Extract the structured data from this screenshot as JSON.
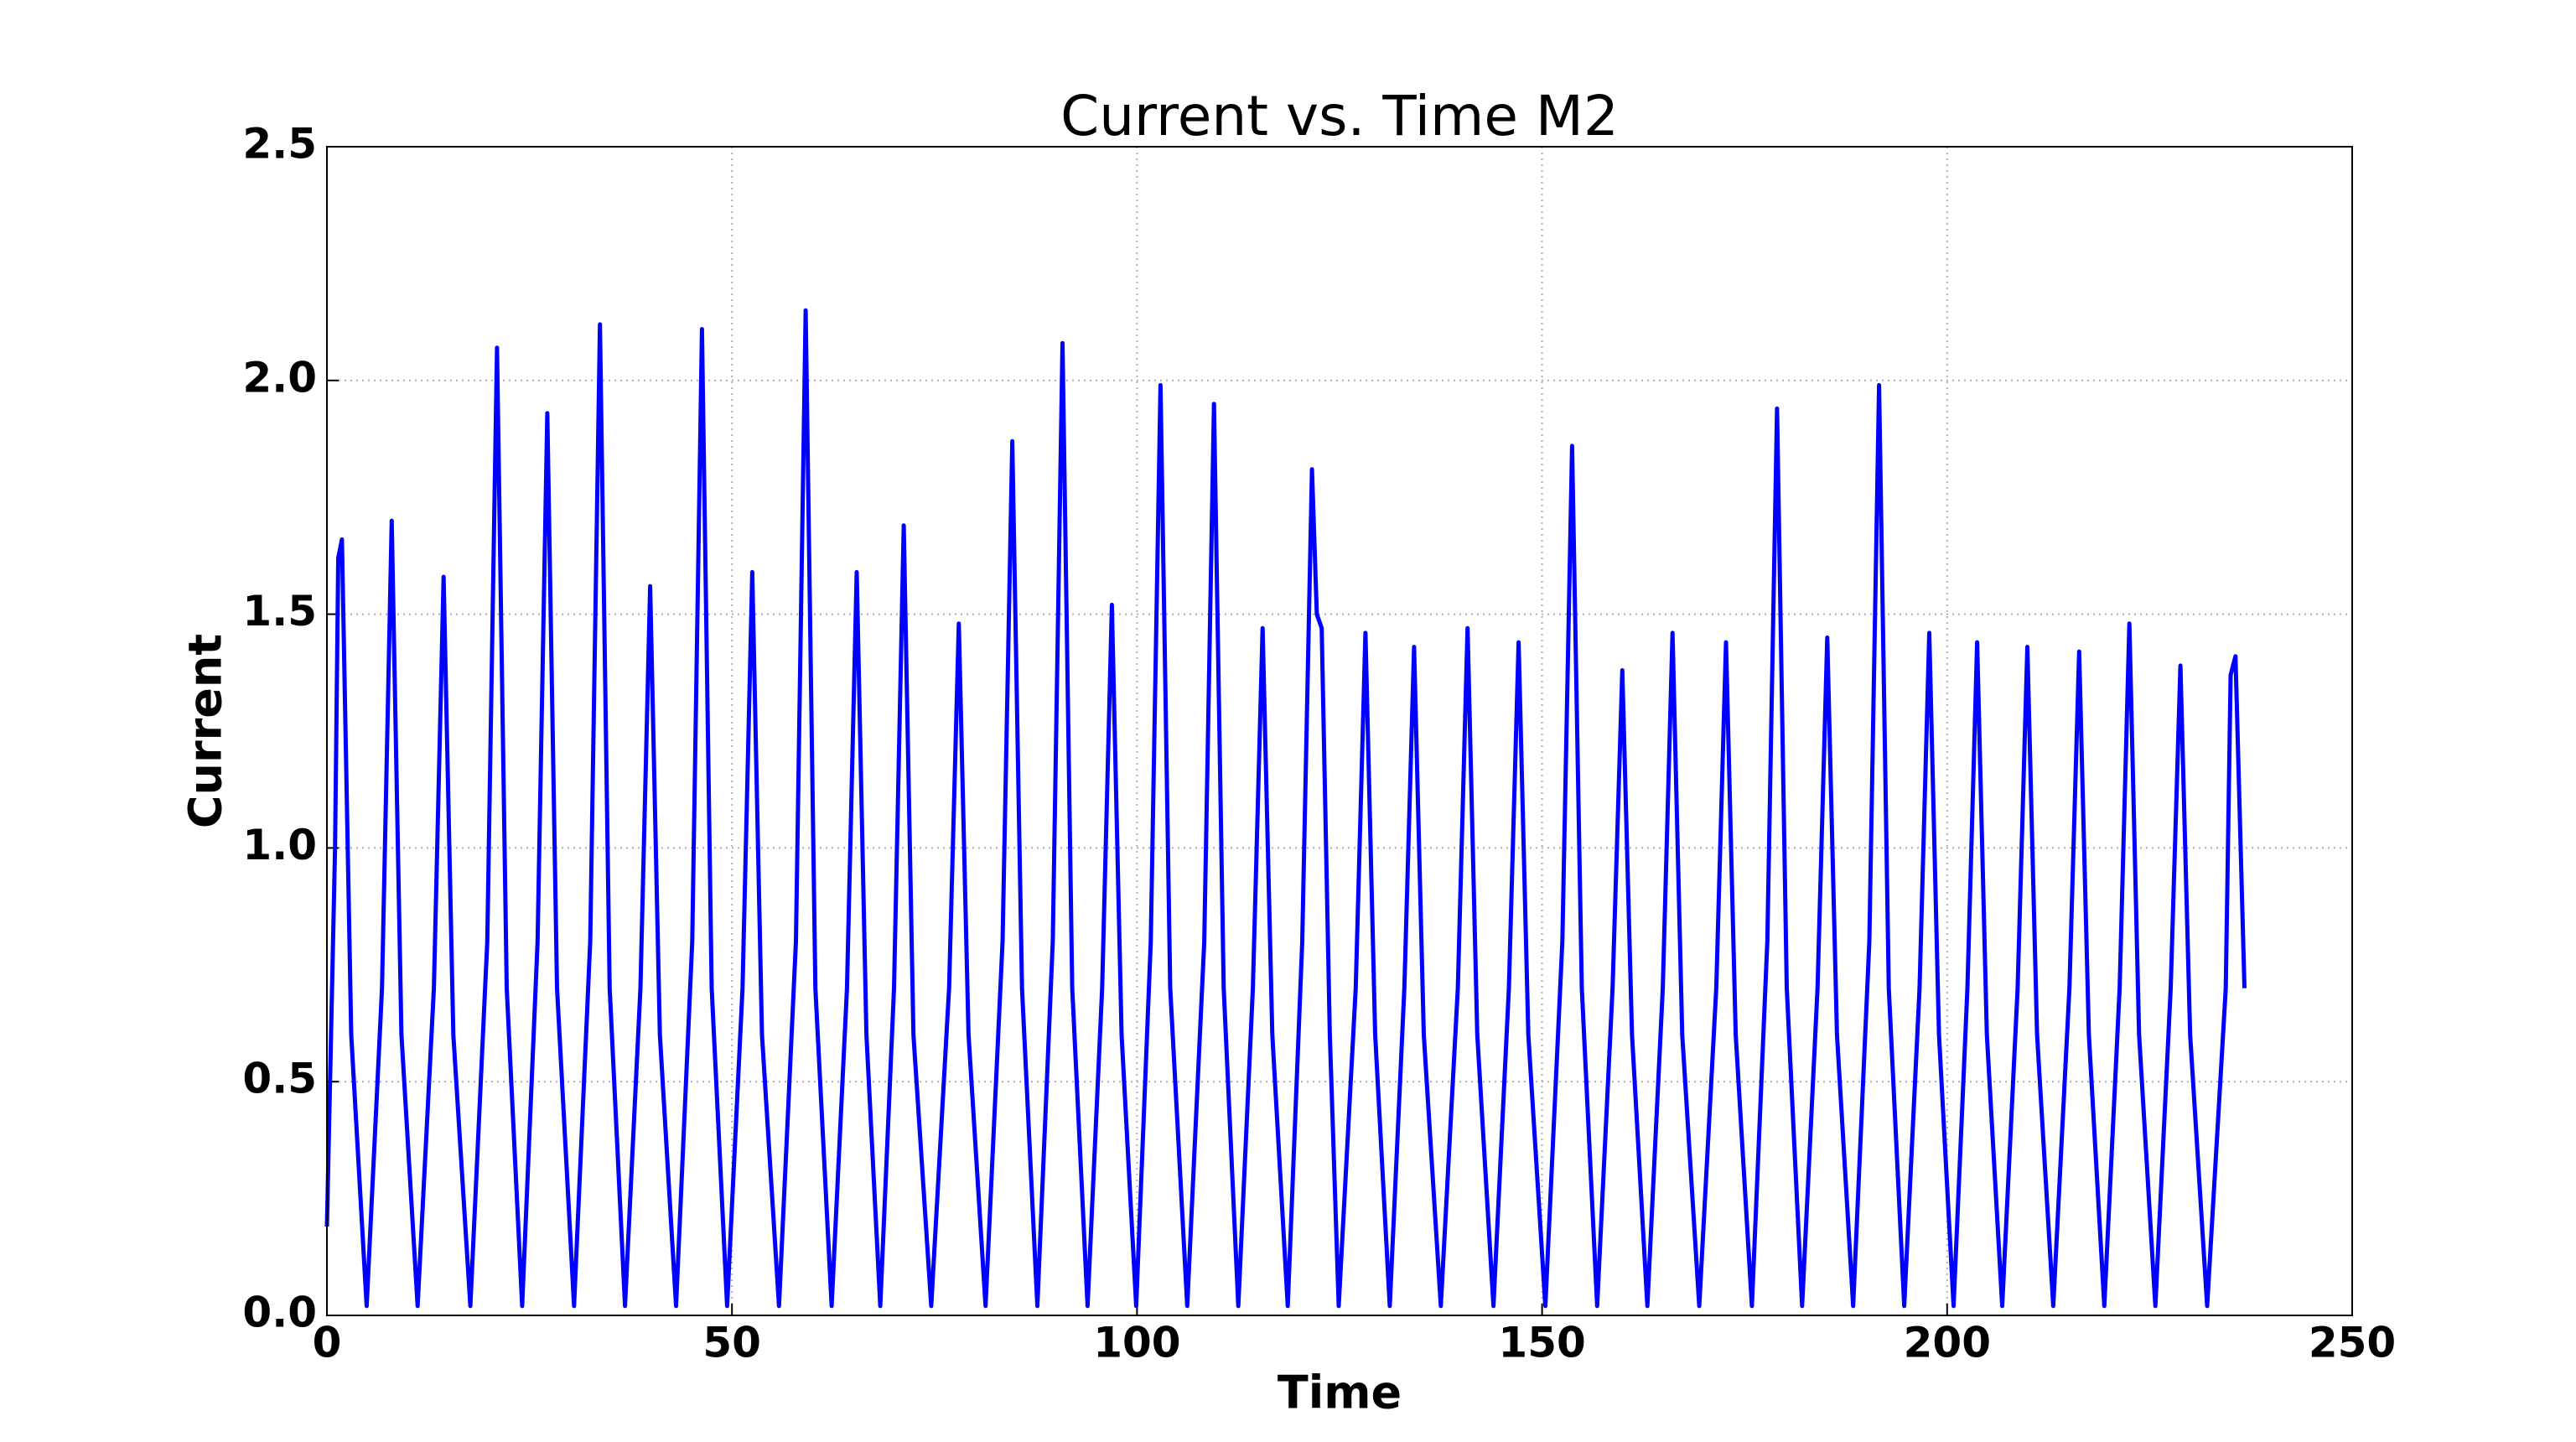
{
  "chart_data": {
    "type": "line",
    "title": "Current vs. Time M2",
    "x_label": "Time",
    "y_label": "Current",
    "xlim": [
      0,
      250
    ],
    "xticks": [
      0,
      50,
      100,
      150,
      200,
      250
    ],
    "ylim": [
      0,
      2.5
    ],
    "yticks": [
      {
        "value": 0,
        "label": "0.0"
      },
      0.5,
      {
        "value": 1,
        "label": "1.0"
      },
      1.5,
      {
        "value": 2,
        "label": "2.0"
      },
      2.5
    ],
    "grid": true,
    "series": [
      {
        "color": "#0000ff",
        "x": [
          0,
          1.0,
          1.4,
          1.85,
          3.0,
          4.9,
          6.8,
          8.0,
          9.2,
          11.2,
          13.2,
          14.4,
          15.6,
          17.7,
          19.8,
          21.0,
          22.2,
          24.1,
          26.0,
          27.2,
          28.4,
          30.5,
          32.5,
          33.7,
          34.9,
          36.8,
          38.7,
          39.9,
          41.1,
          43.1,
          45.1,
          46.3,
          47.5,
          49.4,
          51.3,
          52.5,
          53.7,
          55.8,
          57.9,
          59.1,
          60.3,
          62.3,
          64.2,
          65.4,
          66.6,
          68.3,
          70.0,
          71.2,
          72.4,
          74.6,
          76.8,
          78.0,
          79.2,
          81.3,
          83.4,
          84.6,
          85.8,
          87.7,
          89.6,
          90.8,
          92.0,
          93.9,
          95.7,
          96.9,
          98.1,
          99.9,
          101.7,
          102.9,
          104.1,
          106.2,
          108.3,
          109.5,
          110.7,
          112.5,
          114.3,
          115.5,
          116.7,
          118.6,
          120.4,
          121.6,
          122.2,
          122.8,
          123.8,
          124.9,
          127.0,
          128.2,
          129.4,
          131.2,
          133.0,
          134.2,
          135.4,
          137.5,
          139.6,
          140.8,
          142.0,
          144.0,
          145.9,
          147.1,
          148.3,
          150.4,
          152.5,
          153.7,
          154.9,
          156.8,
          158.7,
          159.9,
          161.1,
          163.0,
          164.9,
          166.1,
          167.3,
          169.4,
          171.5,
          172.7,
          173.9,
          175.9,
          177.8,
          179.0,
          180.2,
          182.1,
          184.0,
          185.2,
          186.4,
          188.4,
          190.4,
          191.6,
          192.8,
          194.7,
          196.6,
          197.8,
          199.0,
          200.8,
          202.5,
          203.7,
          204.9,
          206.8,
          208.7,
          209.9,
          211.1,
          213.1,
          215.1,
          216.3,
          217.5,
          219.4,
          221.3,
          222.5,
          223.7,
          225.7,
          227.6,
          228.8,
          230.0,
          232.1,
          234.4,
          235.0,
          235.6,
          236.7
        ],
        "values": [
          0.19,
          1.0,
          1.62,
          1.66,
          0.6,
          0.02,
          0.7,
          1.7,
          0.6,
          0.02,
          0.7,
          1.58,
          0.6,
          0.02,
          0.8,
          2.07,
          0.7,
          0.02,
          0.8,
          1.93,
          0.7,
          0.02,
          0.8,
          2.12,
          0.7,
          0.02,
          0.7,
          1.56,
          0.6,
          0.02,
          0.8,
          2.11,
          0.7,
          0.02,
          0.7,
          1.59,
          0.6,
          0.02,
          0.8,
          2.15,
          0.7,
          0.02,
          0.7,
          1.59,
          0.6,
          0.02,
          0.7,
          1.69,
          0.6,
          0.02,
          0.7,
          1.48,
          0.6,
          0.02,
          0.8,
          1.87,
          0.7,
          0.02,
          0.8,
          2.08,
          0.7,
          0.02,
          0.7,
          1.52,
          0.6,
          0.02,
          0.8,
          1.99,
          0.7,
          0.02,
          0.8,
          1.95,
          0.7,
          0.02,
          0.7,
          1.47,
          0.6,
          0.02,
          0.8,
          1.81,
          1.5,
          1.47,
          0.6,
          0.02,
          0.7,
          1.46,
          0.6,
          0.02,
          0.7,
          1.43,
          0.6,
          0.02,
          0.7,
          1.47,
          0.6,
          0.02,
          0.7,
          1.44,
          0.6,
          0.02,
          0.8,
          1.86,
          0.7,
          0.02,
          0.7,
          1.38,
          0.6,
          0.02,
          0.7,
          1.46,
          0.6,
          0.02,
          0.7,
          1.44,
          0.6,
          0.02,
          0.8,
          1.94,
          0.7,
          0.02,
          0.7,
          1.45,
          0.6,
          0.02,
          0.8,
          1.99,
          0.7,
          0.02,
          0.7,
          1.46,
          0.6,
          0.02,
          0.7,
          1.44,
          0.6,
          0.02,
          0.7,
          1.43,
          0.6,
          0.02,
          0.7,
          1.42,
          0.6,
          0.02,
          0.7,
          1.48,
          0.6,
          0.02,
          0.7,
          1.39,
          0.6,
          0.02,
          0.7,
          1.37,
          1.41,
          0.7
        ]
      }
    ]
  }
}
